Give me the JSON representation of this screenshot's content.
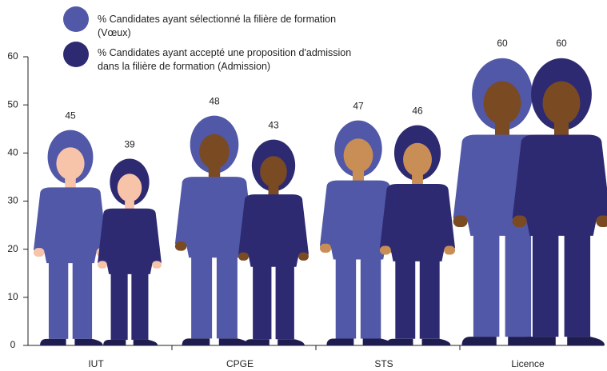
{
  "chart_data": {
    "type": "pictograph",
    "categories": [
      "IUT",
      "CPGE",
      "STS",
      "Licence"
    ],
    "series": [
      {
        "name": "% Candidates ayant sélectionné la filière de formation (Vœux)",
        "color": "#5158a8",
        "values": [
          45,
          48,
          47,
          60
        ]
      },
      {
        "name": "% Candidates ayant accepté une proposition d'admission dans la filière de formation (Admission)",
        "color": "#2d2a72",
        "values": [
          39,
          43,
          46,
          60
        ]
      }
    ],
    "ylim": [
      0,
      60
    ],
    "yticks": [
      0,
      10,
      20,
      30,
      40,
      50,
      60
    ]
  }
}
